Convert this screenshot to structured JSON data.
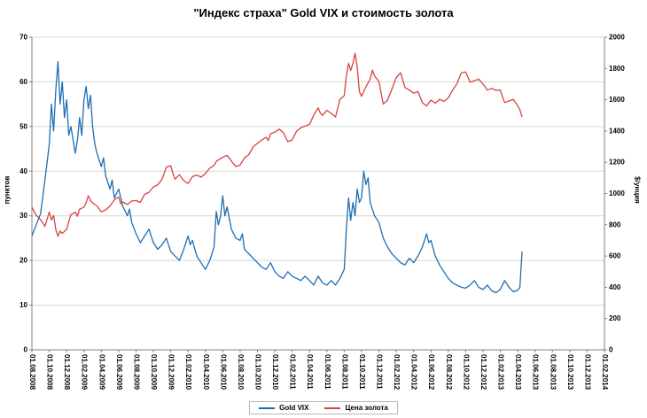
{
  "chart_data": {
    "type": "line",
    "title": "\"Индекс страха\" Gold VIX и стоимость золота",
    "grid": {
      "horizontal": true,
      "color": "#cfdccf"
    },
    "axis_color": "#808080",
    "legend": {
      "position": "bottom"
    },
    "axes": {
      "left": {
        "title": "пунктов",
        "min": 0,
        "max": 70,
        "step": 10,
        "tick_labels": [
          "0",
          "10",
          "20",
          "30",
          "40",
          "50",
          "60",
          "70"
        ]
      },
      "right": {
        "title": "$/унция",
        "min": 0,
        "max": 2000,
        "step": 200,
        "tick_labels": [
          "0",
          "200",
          "400",
          "600",
          "800",
          "1000",
          "1200",
          "1400",
          "1600",
          "1800",
          "2000"
        ]
      },
      "x": {
        "min": 0,
        "max": 66,
        "tick_step": 2,
        "tick_labels": [
          "01.08.2008",
          "01.10.2008",
          "01.12.2008",
          "01.02.2009",
          "01.04.2009",
          "01.06.2009",
          "01.08.2009",
          "01.10.2009",
          "01.12.2009",
          "01.02.2010",
          "01.04.2010",
          "01.06.2010",
          "01.08.2010",
          "01.10.2010",
          "01.12.2010",
          "01.02.2011",
          "01.04.2011",
          "01.06.2011",
          "01.08.2011",
          "01.10.2011",
          "01.12.2011",
          "01.02.2012",
          "01.04.2012",
          "01.06.2012",
          "01.08.2012",
          "01.10.2012",
          "01.12.2012",
          "01.02.2013",
          "01.04.2013",
          "01.06.2013",
          "01.08.2013",
          "01.10.2013",
          "01.12.2013",
          "01.02.2014"
        ]
      }
    },
    "series": [
      {
        "name": "Gold VIX",
        "color": "#1f6db4",
        "axis": "left",
        "x": [
          0,
          0.5,
          1,
          1.5,
          2,
          2.25,
          2.5,
          2.75,
          3,
          3.25,
          3.5,
          3.75,
          4,
          4.25,
          4.5,
          5,
          5.25,
          5.5,
          5.75,
          6,
          6.25,
          6.5,
          6.75,
          7,
          7.25,
          7.5,
          8,
          8.25,
          8.5,
          9,
          9.25,
          9.5,
          10,
          10.5,
          11,
          11.25,
          11.5,
          12,
          12.5,
          13,
          13.5,
          14,
          14.5,
          15,
          15.5,
          16,
          16.5,
          17,
          17.5,
          18,
          18.25,
          18.5,
          19,
          19.5,
          20,
          20.5,
          21,
          21.25,
          21.5,
          21.75,
          22,
          22.25,
          22.5,
          23,
          23.5,
          24,
          24.25,
          24.5,
          25,
          25.5,
          26,
          26.5,
          27,
          27.5,
          28,
          28.5,
          29,
          29.5,
          30,
          30.5,
          31,
          31.5,
          32,
          32.5,
          33,
          33.5,
          34,
          34.5,
          35,
          35.5,
          36,
          36.25,
          36.5,
          36.75,
          37,
          37.25,
          37.5,
          37.75,
          38,
          38.25,
          38.5,
          38.75,
          39,
          39.5,
          40,
          40.5,
          41,
          41.5,
          42,
          42.5,
          43,
          43.5,
          44,
          44.5,
          45,
          45.5,
          45.75,
          46,
          46.5,
          47,
          47.5,
          48,
          48.5,
          49,
          49.5,
          50,
          50.5,
          51,
          51.5,
          52,
          52.5,
          53,
          53.5,
          54,
          54.5,
          55,
          55.5,
          56,
          56.25,
          56.5
        ],
        "y": [
          25.5,
          28,
          30.5,
          38,
          46,
          55,
          49,
          58,
          64.5,
          55,
          60,
          52,
          56,
          48,
          50,
          44,
          47,
          52,
          48,
          56,
          59,
          54,
          57,
          50,
          46,
          44,
          41,
          43,
          39,
          36,
          38,
          34,
          36,
          32,
          30,
          31.5,
          28.5,
          26,
          24,
          25.5,
          27,
          24,
          22.5,
          23.5,
          25,
          22,
          21,
          20,
          22.5,
          25.5,
          23.5,
          24.5,
          21,
          19.5,
          18,
          20,
          23,
          31,
          28,
          30,
          34.5,
          30,
          32,
          27,
          25,
          24.5,
          26,
          22.5,
          21.5,
          20.5,
          19.5,
          18.5,
          18,
          19.5,
          17.5,
          16.5,
          16,
          17.5,
          16.5,
          16,
          15.5,
          16.5,
          15.5,
          14.5,
          16.5,
          15,
          14.5,
          15.5,
          14.5,
          16,
          18,
          27,
          34,
          29,
          33,
          30,
          36,
          33,
          34,
          40,
          37,
          38.5,
          33,
          30,
          28.5,
          25,
          23,
          21.5,
          20.5,
          19.5,
          19,
          20.5,
          19.5,
          21,
          23,
          26,
          24,
          24.5,
          21,
          19,
          17.5,
          16,
          15,
          14.5,
          14,
          13.8,
          14.5,
          15.5,
          14,
          13.5,
          14.5,
          13.2,
          12.8,
          13.5,
          15.5,
          14,
          13,
          13.3,
          14,
          22
        ]
      },
      {
        "name": "Цена золота",
        "color": "#d8433f",
        "axis": "right",
        "x": [
          0,
          0.5,
          1,
          1.5,
          2,
          2.25,
          2.5,
          2.75,
          3,
          3.25,
          3.5,
          4,
          4.25,
          4.5,
          5,
          5.25,
          5.5,
          6,
          6.25,
          6.5,
          6.75,
          7,
          7.5,
          8,
          8.5,
          9,
          9.5,
          10,
          10.25,
          10.5,
          11,
          11.5,
          12,
          12.5,
          13,
          13.5,
          14,
          14.5,
          15,
          15.5,
          16,
          16.25,
          16.5,
          17,
          17.5,
          18,
          18.5,
          19,
          19.5,
          20,
          20.5,
          21,
          21.25,
          21.5,
          22,
          22.5,
          23,
          23.5,
          24,
          24.5,
          25,
          25.5,
          26,
          26.5,
          27,
          27.25,
          27.5,
          28,
          28.5,
          29,
          29.5,
          30,
          30.5,
          31,
          31.5,
          32,
          32.5,
          33,
          33.25,
          33.5,
          34,
          34.5,
          35,
          35.5,
          36,
          36.25,
          36.5,
          36.75,
          37,
          37.25,
          37.5,
          37.75,
          38,
          38.5,
          39,
          39.25,
          39.5,
          40,
          40.5,
          41,
          41.5,
          42,
          42.5,
          43,
          43.5,
          44,
          44.5,
          45,
          45.5,
          46,
          46.5,
          47,
          47.5,
          48,
          48.5,
          49,
          49.5,
          50,
          50.5,
          51,
          51.5,
          52,
          52.5,
          53,
          53.5,
          54,
          54.25,
          54.5,
          55,
          55.5,
          56,
          56.25,
          56.5
        ],
        "y": [
          912,
          860,
          833,
          790,
          882,
          830,
          860,
          770,
          726,
          760,
          745,
          770,
          820,
          865,
          880,
          855,
          900,
          912,
          940,
          985,
          955,
          940,
          920,
          883,
          895,
          920,
          960,
          978,
          935,
          945,
          930,
          952,
          955,
          943,
          995,
          1008,
          1042,
          1055,
          1092,
          1168,
          1178,
          1130,
          1092,
          1120,
          1082,
          1064,
          1108,
          1118,
          1105,
          1128,
          1162,
          1180,
          1205,
          1215,
          1232,
          1244,
          1208,
          1172,
          1182,
          1228,
          1248,
          1298,
          1322,
          1342,
          1360,
          1338,
          1382,
          1392,
          1412,
          1388,
          1332,
          1342,
          1398,
          1420,
          1432,
          1442,
          1502,
          1548,
          1515,
          1500,
          1532,
          1512,
          1490,
          1602,
          1626,
          1752,
          1832,
          1788,
          1832,
          1898,
          1812,
          1652,
          1622,
          1682,
          1732,
          1790,
          1752,
          1718,
          1572,
          1598,
          1668,
          1742,
          1772,
          1678,
          1662,
          1642,
          1652,
          1582,
          1560,
          1598,
          1578,
          1602,
          1590,
          1612,
          1662,
          1702,
          1772,
          1778,
          1712,
          1722,
          1732,
          1700,
          1662,
          1672,
          1660,
          1662,
          1618,
          1582,
          1592,
          1602,
          1562,
          1535,
          1490
        ]
      }
    ]
  }
}
